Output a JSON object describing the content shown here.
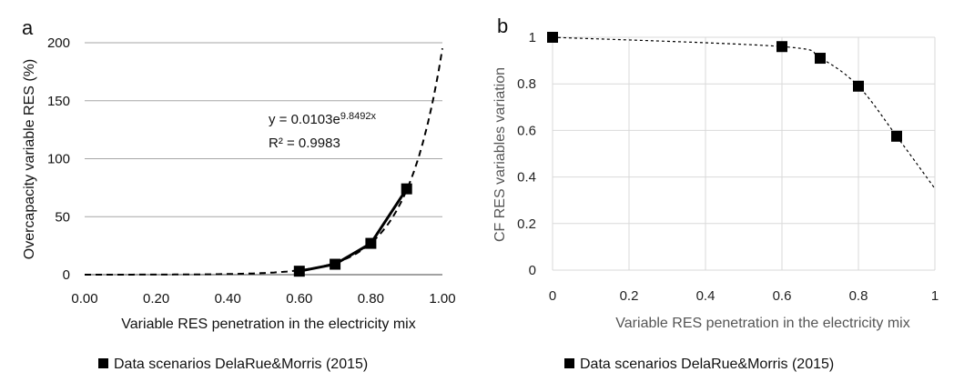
{
  "chart_data": [
    {
      "panel_label": "a",
      "type": "scatter",
      "series": [
        {
          "name": "Data scenarios DelaRue&Morris (2015)",
          "x": [
            0.6,
            0.7,
            0.8,
            0.9
          ],
          "y": [
            3,
            9,
            27,
            74
          ]
        }
      ],
      "trendline": {
        "type": "exponential",
        "a": 0.0103,
        "b": 9.8492,
        "equation_prefix": "y = 0.0103e",
        "equation_exponent": "9.8492x",
        "r2_label": "R² = 0.9983",
        "x_range": [
          0,
          1
        ]
      },
      "xlabel": "Variable RES penetration in the electricity mix",
      "ylabel": "Overcapacity variable RES (%)",
      "xlim": [
        0,
        1
      ],
      "ylim": [
        0,
        200
      ],
      "x_ticks": [
        "0.00",
        "0.20",
        "0.40",
        "0.60",
        "0.80",
        "1.00"
      ],
      "y_ticks": [
        "0",
        "50",
        "100",
        "150",
        "200"
      ],
      "grid": "horizontal",
      "legend_position": "bottom"
    },
    {
      "panel_label": "b",
      "type": "scatter",
      "series": [
        {
          "name": "Data scenarios DelaRue&Morris (2015)",
          "x": [
            0,
            0.6,
            0.7,
            0.8,
            0.9
          ],
          "y": [
            1.0,
            0.96,
            0.91,
            0.79,
            0.575
          ]
        }
      ],
      "trendline": {
        "type": "smoothed dotted",
        "x": [
          0,
          0.6,
          0.7,
          0.8,
          0.9,
          1.0
        ],
        "y": [
          1.0,
          0.96,
          0.91,
          0.79,
          0.575,
          0.35
        ]
      },
      "xlabel": "Variable RES penetration in the electricity mix",
      "ylabel": "CF RES variables variation",
      "xlim": [
        0,
        1
      ],
      "ylim": [
        0,
        1
      ],
      "x_ticks": [
        "0",
        "0.2",
        "0.4",
        "0.6",
        "0.8",
        "1"
      ],
      "y_ticks": [
        "0",
        "0.2",
        "0.4",
        "0.6",
        "0.8",
        "1"
      ],
      "grid": "both",
      "legend_position": "bottom"
    }
  ]
}
